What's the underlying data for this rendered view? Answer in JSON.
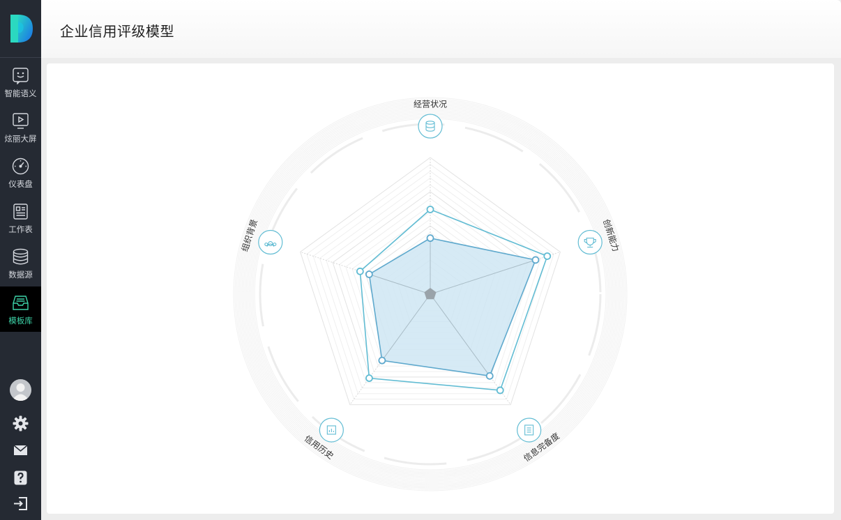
{
  "app": {
    "title": "企业信用评级模型"
  },
  "sidebar": {
    "logo": "logo-icon",
    "items": [
      {
        "label": "智能语义",
        "icon": "chat-smile-icon",
        "active": false
      },
      {
        "label": "炫丽大屏",
        "icon": "play-screen-icon",
        "active": false
      },
      {
        "label": "仪表盘",
        "icon": "gauge-icon",
        "active": false
      },
      {
        "label": "工作表",
        "icon": "worksheet-icon",
        "active": false
      },
      {
        "label": "数据源",
        "icon": "database-icon",
        "active": false
      },
      {
        "label": "模板库",
        "icon": "template-library-icon",
        "active": true
      }
    ],
    "bottom": [
      "avatar",
      "gear-icon",
      "mail-icon",
      "help-icon",
      "logout-icon"
    ],
    "colors": {
      "bg": "#252a33",
      "active_bg": "#000000",
      "active_text": "#3dd3a8",
      "text": "#d5d8de"
    }
  },
  "chart_data": {
    "type": "radar",
    "indicators": [
      {
        "name": "经营状况",
        "icon": "database-icon"
      },
      {
        "name": "创新能力",
        "icon": "trophy-icon"
      },
      {
        "name": "信息完备度",
        "icon": "document-icon"
      },
      {
        "name": "信用历史",
        "icon": "chart-icon"
      },
      {
        "name": "组织背景",
        "icon": "people-icon"
      }
    ],
    "max": 100,
    "series": [
      {
        "values": [
          62,
          90,
          87,
          76,
          54
        ],
        "color": "#61bcd3",
        "filled": false
      },
      {
        "values": [
          41,
          81,
          74,
          60,
          47
        ],
        "color": "#5fa9cd",
        "filled": true,
        "fill": "#cfe6f3"
      }
    ],
    "grid": true
  }
}
